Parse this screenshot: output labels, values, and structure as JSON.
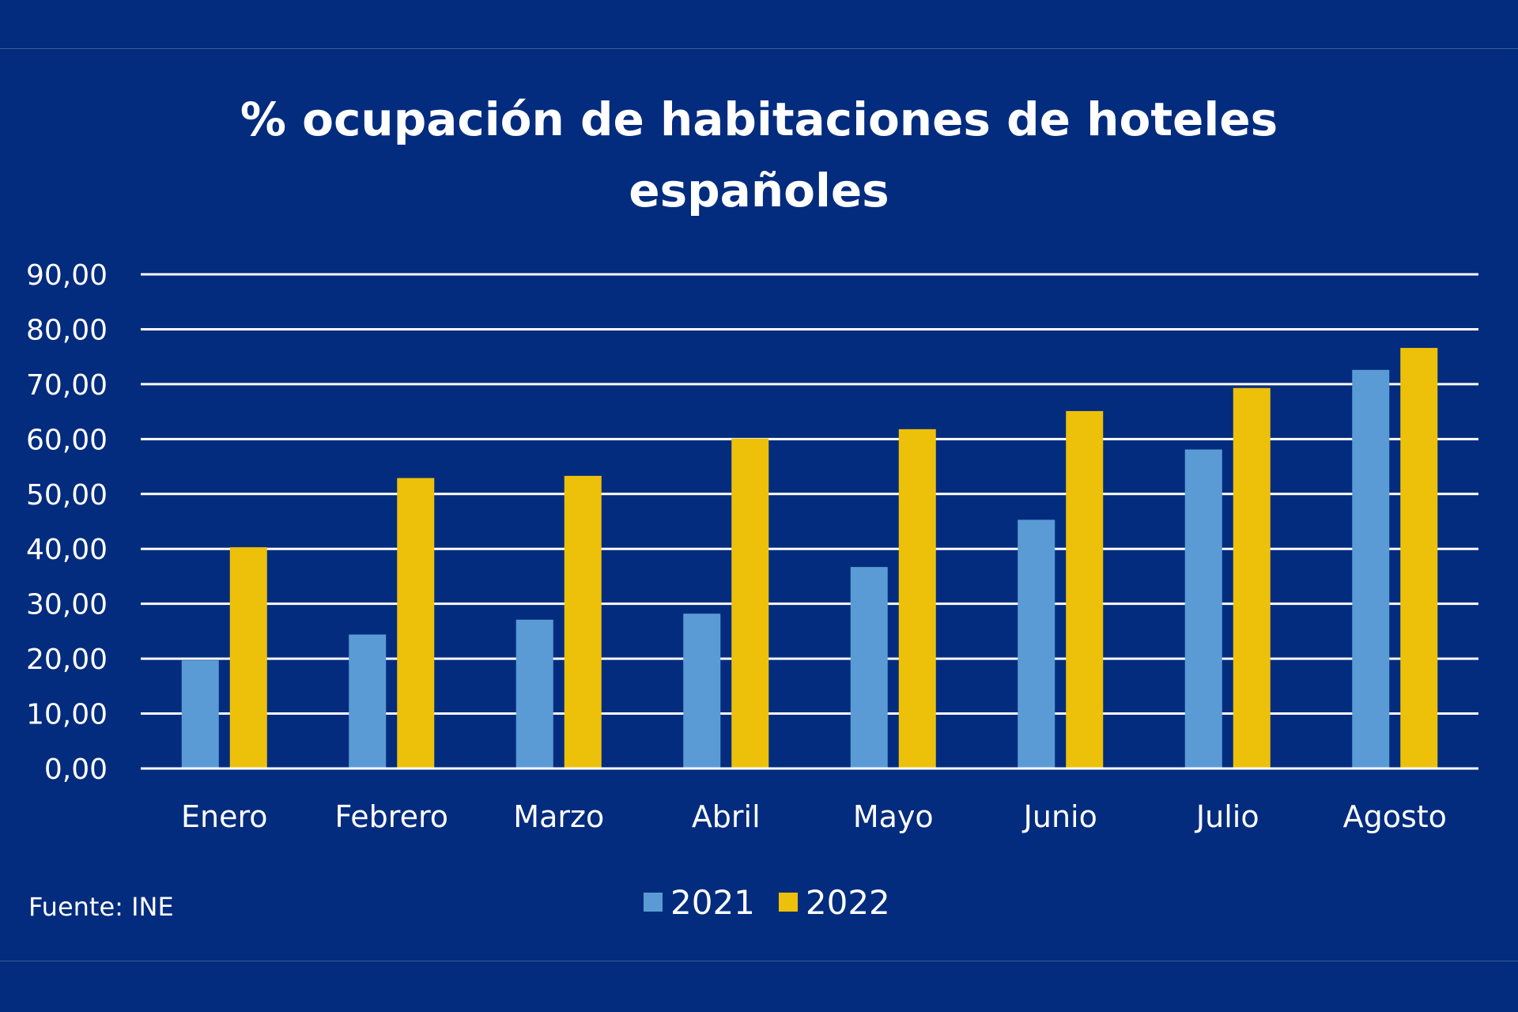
{
  "colors": {
    "background": "#032C7E",
    "grid": "#ffffff",
    "text": "#ffffff"
  },
  "chart_data": {
    "type": "bar",
    "title": "% ocupación de habitaciones de hoteles españoles",
    "title_lines": [
      "% ocupación de habitaciones de hoteles",
      "españoles"
    ],
    "categories": [
      "Enero",
      "Febrero",
      "Marzo",
      "Abril",
      "Mayo",
      "Junio",
      "Julio",
      "Agosto"
    ],
    "series": [
      {
        "name": "2021",
        "color": "#5B9BD5",
        "values": [
          19.7,
          24.4,
          27.1,
          28.2,
          36.7,
          45.3,
          58.1,
          72.6
        ]
      },
      {
        "name": "2022",
        "color": "#EDC10A",
        "values": [
          40.3,
          52.9,
          53.3,
          60.1,
          61.8,
          65.1,
          69.3,
          76.6
        ]
      }
    ],
    "ylim": [
      0,
      90
    ],
    "yticks": [
      "0,00",
      "10,00",
      "20,00",
      "30,00",
      "40,00",
      "50,00",
      "60,00",
      "70,00",
      "80,00",
      "90,00"
    ],
    "grid": true,
    "legend": "bottom"
  },
  "source_note": "Fuente: INE"
}
